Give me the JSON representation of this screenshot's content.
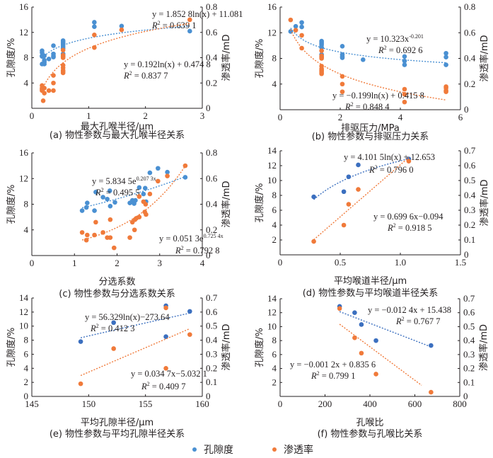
{
  "colors": {
    "porosity": "#4a90d2",
    "permeability": "#f07a3a",
    "porosity_dark": "#3b6fbf"
  },
  "legend": {
    "porosity": "孔隙度",
    "permeability": "渗透率"
  },
  "chart_data": [
    {
      "id": "a",
      "type": "scatter",
      "caption": "(a) 物性参数与最大孔喉半径关系",
      "xlabel": "最大孔喉半径/μm",
      "ylabel_left": "孔隙度/%",
      "ylabel_right": "渗透率/mD",
      "xlim": [
        0,
        3
      ],
      "xticks": [
        "0",
        "1",
        "2",
        "3"
      ],
      "xtick_values": [
        0,
        1,
        2,
        3
      ],
      "ylim_left": [
        0,
        16
      ],
      "yticks_left": [
        "",
        "4",
        "8",
        "12",
        "16"
      ],
      "ytick_values_left": [
        0,
        4,
        8,
        12,
        16
      ],
      "ylim_right": [
        0,
        0.8
      ],
      "yticks_right": [
        "0",
        "0.2",
        "0.4",
        "0.6",
        "0.8"
      ],
      "ytick_values_right": [
        0,
        0.2,
        0.4,
        0.6,
        0.8
      ],
      "series": [
        {
          "name": "孔隙度",
          "axis": "left",
          "x": [
            0.18,
            0.18,
            0.18,
            0.18,
            0.18,
            0.22,
            0.22,
            0.22,
            0.22,
            0.3,
            0.38,
            0.38,
            0.38,
            0.38,
            0.55,
            0.55,
            0.55,
            0.55,
            0.55,
            0.55,
            0.55,
            0.55,
            1.1,
            1.1,
            1.58,
            2.78
          ],
          "y": [
            9.1,
            8.8,
            8.2,
            7.0,
            8.3,
            8.3,
            7.6,
            7.3,
            7.0,
            7.8,
            9.9,
            8.6,
            8.3,
            8.1,
            10.7,
            10.5,
            10.3,
            10.1,
            9.8,
            9.5,
            8.6,
            8.2,
            13.6,
            12.9,
            13.0,
            12.2
          ],
          "fit": {
            "kind": "log",
            "a": 1.8528,
            "b": 11.081,
            "xrange": [
              0.18,
              2.78
            ]
          },
          "equation": "y = 1.852 8ln(x) + 11.081",
          "r2": "R² = 0.639 1"
        },
        {
          "name": "渗透率",
          "axis": "right",
          "x": [
            0.18,
            0.18,
            0.18,
            0.18,
            0.2,
            0.22,
            0.22,
            0.3,
            0.38,
            0.38,
            0.38,
            0.55,
            0.55,
            0.55,
            0.55,
            0.55,
            0.55,
            0.55,
            0.55,
            0.55,
            1.1,
            1.1,
            1.58,
            2.78
          ],
          "y": [
            0.18,
            0.16,
            0.14,
            0.15,
            0.06,
            0.12,
            0.16,
            0.14,
            0.26,
            0.2,
            0.14,
            0.46,
            0.42,
            0.4,
            0.34,
            0.32,
            0.3,
            0.29,
            0.28,
            0.41,
            0.58,
            0.48,
            0.62,
            0.7
          ],
          "fit": {
            "kind": "log",
            "a": 0.192,
            "b": 0.4748,
            "xrange": [
              0.18,
              2.78
            ]
          },
          "equation": "y = 0.192ln(x) + 0.474 8",
          "r2": "R² = 0.837 7"
        }
      ]
    },
    {
      "id": "b",
      "type": "scatter",
      "caption": "(b) 物性参数与排驱压力关系",
      "xlabel": "排驱压力/MPa",
      "ylabel_left": "孔隙度/%",
      "ylabel_right": "渗透率/mD",
      "xlim": [
        0,
        6
      ],
      "xticks": [
        "0",
        "2",
        "4",
        "6"
      ],
      "xtick_values": [
        0,
        2,
        4,
        6
      ],
      "ylim_left": [
        0,
        16
      ],
      "yticks_left": [
        "",
        "4",
        "8",
        "12",
        "16"
      ],
      "ytick_values_left": [
        0,
        4,
        8,
        12,
        16
      ],
      "ylim_right": [
        0,
        0.8
      ],
      "yticks_right": [
        "0",
        "0.2",
        "0.4",
        "0.6",
        "0.8"
      ],
      "ytick_values_right": [
        0,
        0.2,
        0.4,
        0.6,
        0.8
      ],
      "series": [
        {
          "name": "孔隙度",
          "axis": "left",
          "x": [
            0.35,
            0.52,
            0.72,
            0.72,
            1.38,
            1.38,
            1.38,
            1.38,
            1.38,
            1.38,
            1.38,
            2.07,
            2.07,
            2.07,
            2.07,
            2.76,
            4.14,
            4.14,
            4.14,
            5.52,
            5.52,
            5.52
          ],
          "y": [
            12.2,
            13.0,
            13.6,
            12.9,
            10.7,
            10.5,
            10.3,
            10.1,
            9.7,
            8.6,
            8.2,
            9.9,
            8.6,
            8.3,
            8.1,
            7.8,
            8.3,
            7.6,
            7.0,
            8.8,
            8.2,
            7.0
          ],
          "fit": {
            "kind": "power",
            "a": 10.323,
            "b": -0.201,
            "xrange": [
              0.35,
              5.52
            ]
          },
          "equation": "y = 10.323x^-0.201",
          "r2": "R² = 0.692 6"
        },
        {
          "name": "渗透率",
          "axis": "right",
          "x": [
            0.35,
            0.52,
            0.72,
            0.72,
            1.38,
            1.38,
            1.38,
            1.38,
            1.38,
            1.38,
            1.38,
            1.38,
            1.38,
            1.38,
            2.07,
            2.07,
            2.07,
            4.14,
            4.14,
            4.14,
            5.52,
            5.52,
            5.52,
            5.52
          ],
          "y": [
            0.7,
            0.62,
            0.58,
            0.48,
            0.46,
            0.42,
            0.41,
            0.4,
            0.34,
            0.32,
            0.31,
            0.3,
            0.29,
            0.28,
            0.26,
            0.2,
            0.14,
            0.16,
            0.12,
            0.06,
            0.18,
            0.17,
            0.15,
            0.14
          ],
          "fit": {
            "kind": "log",
            "a": -0.199,
            "b": 0.4158,
            "xrange": [
              0.35,
              5.52
            ]
          },
          "equation": "y = −0.199ln(x) + 0.415 8",
          "r2": "R² = 0.848 4"
        }
      ]
    },
    {
      "id": "c",
      "type": "scatter",
      "caption": "(c) 物性参数与分选系数关系",
      "xlabel": "分选系数",
      "ylabel_left": "孔隙度/%",
      "ylabel_right": "渗透率/mD",
      "xlim": [
        0,
        4
      ],
      "xticks": [
        "0",
        "1",
        "2",
        "3",
        "4"
      ],
      "xtick_values": [
        0,
        1,
        2,
        3,
        4
      ],
      "ylim_left": [
        0,
        16
      ],
      "yticks_left": [
        "",
        "4",
        "8",
        "12",
        "16"
      ],
      "ytick_values_left": [
        0,
        4,
        8,
        12,
        16
      ],
      "ylim_right": [
        0,
        0.8
      ],
      "yticks_right": [
        "0",
        "0.2",
        "0.4",
        "0.6",
        "0.8"
      ],
      "ytick_values_right": [
        0,
        0.2,
        0.4,
        0.6,
        0.8
      ],
      "series": [
        {
          "name": "孔隙度",
          "axis": "left",
          "x": [
            1.18,
            1.28,
            1.3,
            1.47,
            1.5,
            1.67,
            1.77,
            1.83,
            1.84,
            1.95,
            2.3,
            2.36,
            2.4,
            2.43,
            2.52,
            2.62,
            2.66,
            2.68,
            2.77,
            2.96,
            3.18,
            3.6
          ],
          "y": [
            7.0,
            7.5,
            8.2,
            7.0,
            9.9,
            9.1,
            8.8,
            10.1,
            7.7,
            8.3,
            8.2,
            8.6,
            8.1,
            8.6,
            10.6,
            9.6,
            10.5,
            8.4,
            12.9,
            13.6,
            13.0,
            12.2
          ],
          "fit": {
            "kind": "exp",
            "a": 5.8345,
            "b": 0.2073,
            "xrange": [
              1.18,
              3.6
            ]
          },
          "equation": "y = 5.834 5e^(0.207 3x)",
          "r2": "R² = 0.495 5"
        },
        {
          "name": "渗透率",
          "axis": "right",
          "x": [
            1.18,
            1.28,
            1.3,
            1.47,
            1.5,
            1.67,
            1.77,
            1.84,
            1.84,
            1.93,
            2.3,
            2.36,
            2.41,
            2.42,
            2.45,
            2.52,
            2.52,
            2.62,
            2.65,
            2.67,
            2.68,
            2.77,
            2.96,
            3.18,
            3.6
          ],
          "y": [
            0.18,
            0.12,
            0.16,
            0.16,
            0.26,
            0.18,
            0.14,
            0.14,
            0.28,
            0.06,
            0.14,
            0.26,
            0.2,
            0.28,
            0.29,
            0.3,
            0.46,
            0.42,
            0.34,
            0.4,
            0.32,
            0.48,
            0.58,
            0.62,
            0.7
          ],
          "fit": {
            "kind": "exp",
            "a": 0.0513,
            "b": 0.7254,
            "xrange": [
              1.18,
              3.6
            ]
          },
          "equation": "y = 0.051 3e^(0.725 4x)",
          "r2": "R² = 0.792 8"
        }
      ]
    },
    {
      "id": "d",
      "type": "scatter",
      "caption": "(d) 物性参数与平均喉道半径关系",
      "xlabel": "平均喉道半径/μm",
      "ylabel_left": "孔隙度/%",
      "ylabel_right": "渗透率/mD",
      "xlim": [
        0,
        1.5
      ],
      "xticks": [
        "0",
        "0.5",
        "1.0",
        "1.5"
      ],
      "xtick_values": [
        0,
        0.5,
        1.0,
        1.5
      ],
      "ylim_left": [
        0,
        14
      ],
      "yticks_left": [
        "",
        "2",
        "4",
        "6",
        "8",
        "10",
        "12",
        "14"
      ],
      "ytick_values_left": [
        0,
        2,
        4,
        6,
        8,
        10,
        12,
        14
      ],
      "ylim_right": [
        0,
        0.7
      ],
      "yticks_right": [
        "0",
        "0.1",
        "0.2",
        "0.3",
        "0.4",
        "0.5",
        "0.6",
        "0.7"
      ],
      "ytick_values_right": [
        0,
        0.1,
        0.2,
        0.3,
        0.4,
        0.5,
        0.6,
        0.7
      ],
      "series": [
        {
          "name": "孔隙度",
          "axis": "left",
          "x": [
            0.28,
            0.53,
            0.57,
            0.65,
            1.07
          ],
          "y": [
            7.8,
            8.5,
            10.5,
            12.1,
            12.9
          ],
          "fit": {
            "kind": "log",
            "a": 4.1015,
            "b": 12.653,
            "xrange": [
              0.28,
              1.07
            ]
          },
          "equation": "y = 4.101 5ln(x) + 12.653",
          "r2": "R² = 0.796 0"
        },
        {
          "name": "渗透率",
          "axis": "right",
          "x": [
            0.28,
            0.53,
            0.57,
            0.65,
            1.07
          ],
          "y": [
            0.09,
            0.2,
            0.34,
            0.44,
            0.63
          ],
          "fit": {
            "kind": "linear",
            "a": 0.6996,
            "b": -0.094,
            "xrange": [
              0.28,
              1.07
            ]
          },
          "equation": "y = 0.699 6x−0.094",
          "r2": "R² = 0.918 5"
        }
      ]
    },
    {
      "id": "e",
      "type": "scatter",
      "caption": "(e) 物性参数与平均孔隙半径关系",
      "xlabel": "平均孔隙半径/μm",
      "ylabel_left": "孔隙度/%",
      "ylabel_right": "渗透率/mD",
      "xlim": [
        145,
        160
      ],
      "xticks": [
        "145",
        "150",
        "155",
        "160"
      ],
      "xtick_values": [
        145,
        150,
        155,
        160
      ],
      "ylim_left": [
        0,
        14
      ],
      "yticks_left": [
        "0",
        "2",
        "4",
        "6",
        "8",
        "10",
        "12",
        "14"
      ],
      "ytick_values_left": [
        0,
        2,
        4,
        6,
        8,
        10,
        12,
        14
      ],
      "ylim_right": [
        0,
        0.7
      ],
      "yticks_right": [
        "0",
        "0.1",
        "0.2",
        "0.3",
        "0.4",
        "0.5",
        "0.6",
        "0.7"
      ],
      "ytick_values_right": [
        0,
        0.1,
        0.2,
        0.3,
        0.4,
        0.5,
        0.6,
        0.7
      ],
      "series": [
        {
          "name": "孔隙度",
          "axis": "left",
          "x": [
            149.3,
            152.2,
            156.8,
            156.8,
            158.9
          ],
          "y": [
            7.8,
            10.5,
            12.9,
            8.5,
            12.1
          ],
          "fit": {
            "kind": "log",
            "a": 56.329,
            "b": -273.64,
            "xrange": [
              149.3,
              158.9
            ]
          },
          "equation": "y = 56.329ln(x)−273.64",
          "r2": "R² = 0.412 3"
        },
        {
          "name": "渗透率",
          "axis": "right",
          "x": [
            149.3,
            152.2,
            156.8,
            156.8,
            158.9
          ],
          "y": [
            0.09,
            0.34,
            0.63,
            0.2,
            0.44
          ],
          "fit": {
            "kind": "linear",
            "a": 0.0347,
            "b": -5.0321,
            "xrange": [
              149.3,
              158.9
            ]
          },
          "equation": "y = 0.034 7x−5.032 1",
          "r2": "R² = 0.409 7"
        }
      ]
    },
    {
      "id": "f",
      "type": "scatter",
      "caption": "(f) 物性参数与孔喉比关系",
      "xlabel": "孔喉比",
      "ylabel_left": "孔隙度/%",
      "ylabel_right": "渗透率/mD",
      "xlim": [
        0,
        800
      ],
      "xticks": [
        "0",
        "200",
        "400",
        "600",
        "800"
      ],
      "xtick_values": [
        0,
        200,
        400,
        600,
        800
      ],
      "ylim_left": [
        0,
        14
      ],
      "yticks_left": [
        "",
        "2",
        "4",
        "6",
        "8",
        "10",
        "12",
        "14"
      ],
      "ytick_values_left": [
        0,
        2,
        4,
        6,
        8,
        10,
        12,
        14
      ],
      "ylim_right": [
        0,
        0.7
      ],
      "yticks_right": [
        "0",
        "0.1",
        "0.2",
        "0.3",
        "0.4",
        "0.5",
        "0.6",
        "0.7"
      ],
      "ytick_values_right": [
        0,
        0.1,
        0.2,
        0.3,
        0.4,
        0.5,
        0.6,
        0.7
      ],
      "series": [
        {
          "name": "孔隙度",
          "axis": "left",
          "x": [
            265,
            332,
            362,
            427,
            672
          ],
          "y": [
            12.9,
            12.0,
            10.3,
            8.0,
            7.3
          ],
          "fit": {
            "kind": "linear",
            "a": -0.0124,
            "b": 15.438,
            "xrange": [
              265,
              672
            ]
          },
          "equation": "y = −0.012 4x + 15.438",
          "r2": "R² = 0.767 7"
        },
        {
          "name": "渗透率",
          "axis": "right",
          "x": [
            265,
            332,
            362,
            427,
            672
          ],
          "y": [
            0.63,
            0.42,
            0.31,
            0.16,
            0.03
          ],
          "fit": {
            "kind": "linear",
            "a": -0.0012,
            "b": 0.8356,
            "xrange": [
              265,
              630
            ]
          },
          "equation": "y = −0.001 2x + 0.835 6",
          "r2": "R² = 0.799 1"
        }
      ]
    }
  ]
}
